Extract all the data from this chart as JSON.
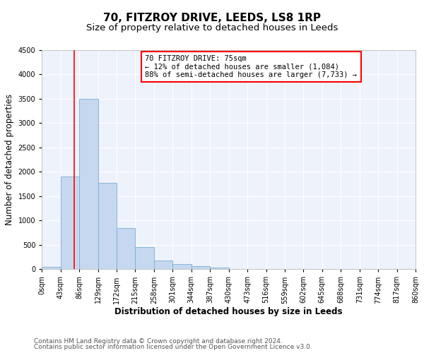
{
  "title": "70, FITZROY DRIVE, LEEDS, LS8 1RP",
  "subtitle": "Size of property relative to detached houses in Leeds",
  "xlabel": "Distribution of detached houses by size in Leeds",
  "ylabel": "Number of detached properties",
  "bar_values": [
    50,
    1900,
    3500,
    1775,
    850,
    450,
    175,
    100,
    55,
    30,
    0,
    0,
    0,
    0,
    0,
    0,
    0,
    0,
    0,
    0
  ],
  "bin_edges": [
    0,
    43,
    86,
    129,
    172,
    215,
    258,
    301,
    344,
    387,
    430,
    473,
    516,
    559,
    602,
    645,
    688,
    731,
    774,
    817,
    860
  ],
  "tick_labels": [
    "0sqm",
    "43sqm",
    "86sqm",
    "129sqm",
    "172sqm",
    "215sqm",
    "258sqm",
    "301sqm",
    "344sqm",
    "387sqm",
    "430sqm",
    "473sqm",
    "516sqm",
    "559sqm",
    "602sqm",
    "645sqm",
    "688sqm",
    "731sqm",
    "774sqm",
    "817sqm",
    "860sqm"
  ],
  "bar_color": "#c5d8ef",
  "bar_edge_color": "#7aafd4",
  "property_line_x": 75,
  "property_line_color": "red",
  "annotation_text": "70 FITZROY DRIVE: 75sqm\n← 12% of detached houses are smaller (1,084)\n88% of semi-detached houses are larger (7,733) →",
  "annotation_box_color": "white",
  "annotation_box_edge_color": "red",
  "ylim": [
    0,
    4500
  ],
  "yticks": [
    0,
    500,
    1000,
    1500,
    2000,
    2500,
    3000,
    3500,
    4000,
    4500
  ],
  "background_color": "#eef2fb",
  "footer_line1": "Contains HM Land Registry data © Crown copyright and database right 2024.",
  "footer_line2": "Contains public sector information licensed under the Open Government Licence v3.0.",
  "title_fontsize": 11,
  "subtitle_fontsize": 9.5,
  "axis_label_fontsize": 8.5,
  "tick_fontsize": 7,
  "footer_fontsize": 6.5,
  "annotation_fontsize": 7.5
}
